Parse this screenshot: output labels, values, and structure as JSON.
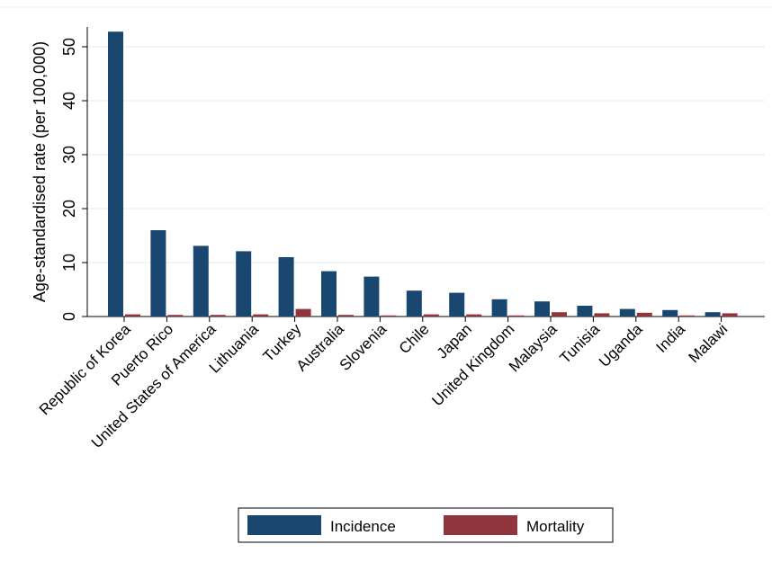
{
  "chart_data": {
    "type": "bar",
    "title": "",
    "xlabel": "",
    "ylabel": "Age-standardised rate (per 100,000)",
    "ylim": [
      0,
      57
    ],
    "yticks": [
      0,
      10,
      20,
      30,
      40,
      50
    ],
    "grid": true,
    "legend_position": "bottom",
    "categories": [
      "Republic of Korea",
      "Puerto Rico",
      "United States of America",
      "Lithuania",
      "Turkey",
      "Australia",
      "Slovenia",
      "Chile",
      "Japan",
      "United Kingdom",
      "Malaysia",
      "Tunisia",
      "Uganda",
      "India",
      "Malawi"
    ],
    "series": [
      {
        "name": "Incidence",
        "color": "#1a476f",
        "values": [
          52.8,
          16.0,
          13.1,
          12.1,
          11.0,
          8.4,
          7.4,
          4.8,
          4.4,
          3.2,
          2.8,
          2.0,
          1.4,
          1.2,
          0.8
        ]
      },
      {
        "name": "Mortality",
        "color": "#90353b",
        "values": [
          0.4,
          0.3,
          0.3,
          0.4,
          1.4,
          0.3,
          0.2,
          0.4,
          0.4,
          0.2,
          0.8,
          0.6,
          0.7,
          0.2,
          0.6
        ]
      }
    ]
  }
}
